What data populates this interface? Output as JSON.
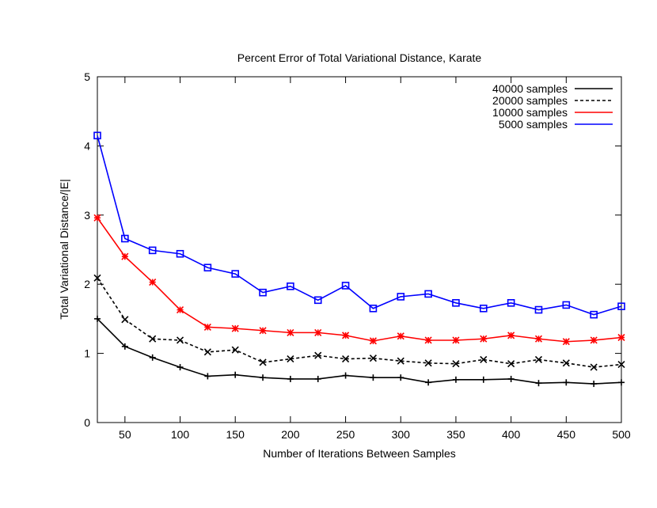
{
  "chart_data": {
    "type": "line",
    "title": "Percent Error of Total Variational Distance, Karate",
    "xlabel": "Number of Iterations Between Samples",
    "ylabel": "Total Variational Distance/|E|",
    "xlim": [
      25,
      500
    ],
    "ylim": [
      0,
      5
    ],
    "xticks": [
      50,
      100,
      150,
      200,
      250,
      300,
      350,
      400,
      450,
      500
    ],
    "yticks": [
      0,
      1,
      2,
      3,
      4,
      5
    ],
    "legend_position": "top-right",
    "x": [
      25,
      50,
      75,
      100,
      125,
      150,
      175,
      200,
      225,
      250,
      275,
      300,
      325,
      350,
      375,
      400,
      425,
      450,
      475,
      500
    ],
    "series": [
      {
        "name": "40000 samples",
        "color": "#000000",
        "dash": "solid",
        "marker": "plus",
        "values": [
          1.5,
          1.1,
          0.94,
          0.8,
          0.67,
          0.69,
          0.65,
          0.63,
          0.63,
          0.68,
          0.65,
          0.65,
          0.58,
          0.62,
          0.62,
          0.63,
          0.57,
          0.58,
          0.56,
          0.58
        ]
      },
      {
        "name": "20000 samples",
        "color": "#000000",
        "dash": "dashed",
        "marker": "cross",
        "values": [
          2.09,
          1.49,
          1.21,
          1.19,
          1.02,
          1.05,
          0.87,
          0.92,
          0.97,
          0.92,
          0.93,
          0.89,
          0.86,
          0.85,
          0.91,
          0.85,
          0.91,
          0.86,
          0.8,
          0.84
        ]
      },
      {
        "name": "10000 samples",
        "color": "#ff0000",
        "dash": "solid",
        "marker": "star",
        "values": [
          2.96,
          2.4,
          2.03,
          1.63,
          1.38,
          1.36,
          1.33,
          1.3,
          1.3,
          1.26,
          1.18,
          1.25,
          1.19,
          1.19,
          1.21,
          1.26,
          1.21,
          1.17,
          1.19,
          1.23
        ]
      },
      {
        "name": "5000 samples",
        "color": "#0000ff",
        "dash": "solid",
        "marker": "box",
        "values": [
          4.15,
          2.66,
          2.49,
          2.44,
          2.24,
          2.15,
          1.88,
          1.97,
          1.77,
          1.98,
          1.65,
          1.82,
          1.86,
          1.73,
          1.65,
          1.73,
          1.63,
          1.7,
          1.56,
          1.68
        ]
      }
    ]
  }
}
